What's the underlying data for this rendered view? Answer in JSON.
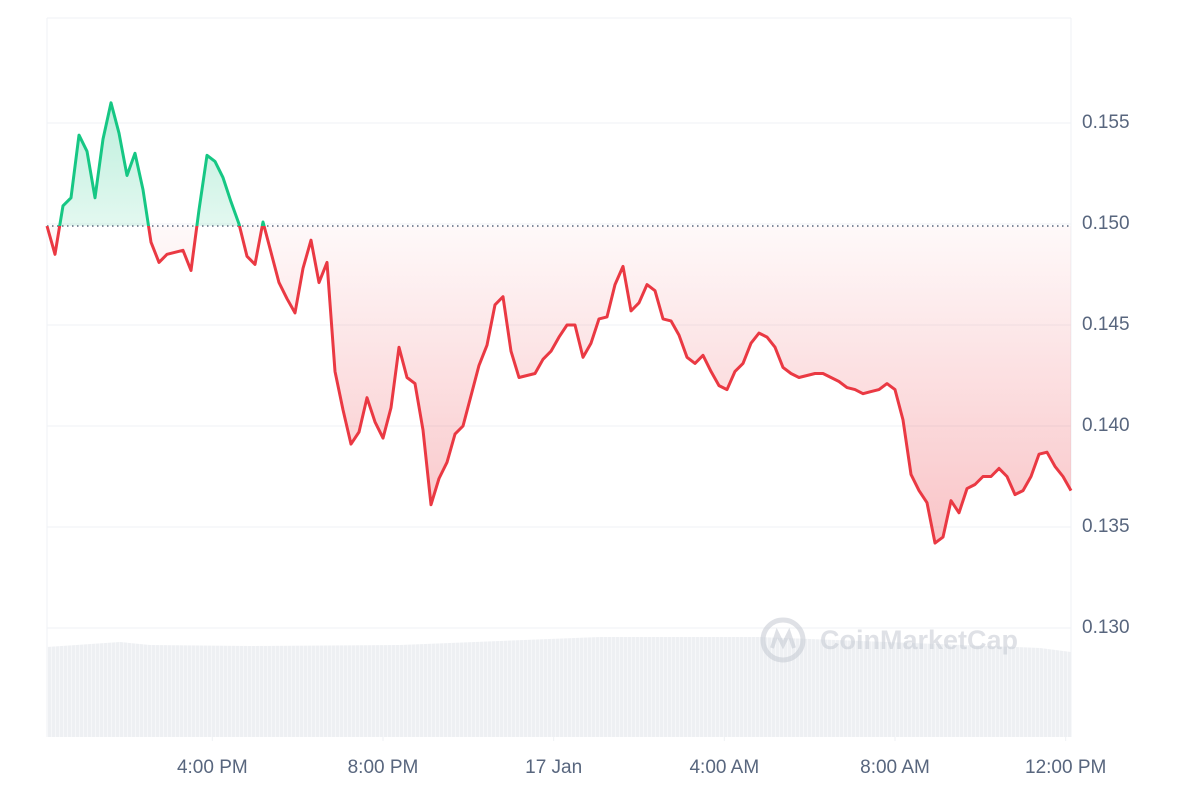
{
  "chart_data": {
    "type": "line",
    "x": [
      12.125,
      12.3125,
      12.5,
      12.6875,
      12.875,
      13.0625,
      13.25,
      13.4375,
      13.625,
      13.8125,
      14,
      14.1875,
      14.375,
      14.5625,
      14.75,
      14.9375,
      15.125,
      15.3125,
      15.5,
      15.6875,
      15.875,
      16.0625,
      16.25,
      16.4375,
      16.625,
      16.8125,
      17,
      17.1875,
      17.375,
      17.5625,
      17.75,
      17.9375,
      18.125,
      18.3125,
      18.5,
      18.6875,
      18.875,
      19.0625,
      19.25,
      19.4375,
      19.625,
      19.8125,
      20,
      20.1875,
      20.375,
      20.5625,
      20.75,
      20.9375,
      21.125,
      21.3125,
      21.5,
      21.6875,
      21.875,
      22.0625,
      22.25,
      22.4375,
      22.625,
      22.8125,
      23,
      23.1875,
      23.375,
      23.5625,
      23.75,
      23.9375,
      24.125,
      24.3125,
      24.5,
      24.6875,
      24.875,
      25.0625,
      25.25,
      25.4375,
      25.625,
      25.8125,
      26,
      26.1875,
      26.375,
      26.5625,
      26.75,
      26.9375,
      27.125,
      27.3125,
      27.5,
      27.6875,
      27.875,
      28.0625,
      28.25,
      28.4375,
      28.625,
      28.8125,
      29,
      29.1875,
      29.375,
      29.5625,
      29.75,
      29.9375,
      30.125,
      30.3125,
      30.5,
      30.6875,
      30.875,
      31.0625,
      31.25,
      31.4375,
      31.625,
      31.8125,
      32,
      32.1875,
      32.375,
      32.5625,
      32.75,
      32.9375,
      33.125,
      33.3125,
      33.5,
      33.6875,
      33.875,
      34.0625,
      34.25,
      34.4375,
      34.625,
      34.8125,
      35,
      35.1875,
      35.375,
      35.5625,
      35.75,
      35.9375,
      36.125
    ],
    "values": [
      0.1499,
      0.1485,
      0.1509,
      0.1513,
      0.1544,
      0.1536,
      0.1513,
      0.1542,
      0.156,
      0.1545,
      0.1524,
      0.1535,
      0.1517,
      0.1491,
      0.1481,
      0.1485,
      0.1486,
      0.1487,
      0.1477,
      0.1507,
      0.1534,
      0.1531,
      0.1523,
      0.1511,
      0.15,
      0.1484,
      0.148,
      0.1501,
      0.1486,
      0.1471,
      0.1463,
      0.1456,
      0.1478,
      0.1492,
      0.1471,
      0.1481,
      0.1427,
      0.1408,
      0.1391,
      0.1397,
      0.1414,
      0.1402,
      0.1394,
      0.1409,
      0.1439,
      0.1424,
      0.1421,
      0.1398,
      0.1361,
      0.1374,
      0.1382,
      0.1396,
      0.14,
      0.1415,
      0.143,
      0.144,
      0.146,
      0.1464,
      0.1437,
      0.1424,
      0.1425,
      0.1426,
      0.1433,
      0.1437,
      0.1444,
      0.145,
      0.145,
      0.1434,
      0.1441,
      0.1453,
      0.1454,
      0.147,
      0.1479,
      0.1457,
      0.1461,
      0.147,
      0.1467,
      0.1453,
      0.1452,
      0.1445,
      0.1434,
      0.1431,
      0.1435,
      0.1427,
      0.142,
      0.1418,
      0.1427,
      0.1431,
      0.1441,
      0.1446,
      0.1444,
      0.1439,
      0.1429,
      0.1426,
      0.1424,
      0.1425,
      0.1426,
      0.1426,
      0.1424,
      0.1422,
      0.1419,
      0.1418,
      0.1416,
      0.1417,
      0.1418,
      0.1421,
      0.1418,
      0.1403,
      0.1376,
      0.1368,
      0.1362,
      0.1342,
      0.1345,
      0.1363,
      0.1357,
      0.1369,
      0.1371,
      0.1375,
      0.1375,
      0.1379,
      0.1375,
      0.1366,
      0.1368,
      0.1375,
      0.1386,
      0.1387,
      0.138,
      0.1375,
      0.1368
    ],
    "baseline": 0.1499,
    "color_up": "#16c784",
    "color_down": "#ea3943",
    "xlim": [
      12.125,
      36.125
    ],
    "xticks": [
      {
        "value": 16,
        "label": "4:00 PM"
      },
      {
        "value": 20,
        "label": "8:00 PM"
      },
      {
        "value": 24,
        "label": "17 Jan"
      },
      {
        "value": 28,
        "label": "4:00 AM"
      },
      {
        "value": 32,
        "label": "8:00 AM"
      },
      {
        "value": 36,
        "label": "12:00 PM"
      }
    ],
    "ylim": [
      0.1246,
      0.1602
    ],
    "yticks": [
      {
        "value": 0.13,
        "label": "0.130"
      },
      0.135,
      {
        "value": 0.14,
        "label": "0.140"
      },
      0.145,
      {
        "value": 0.15,
        "label": "0.150"
      },
      0.155
    ],
    "grid": true,
    "watermark": "CoinMarketCap"
  }
}
